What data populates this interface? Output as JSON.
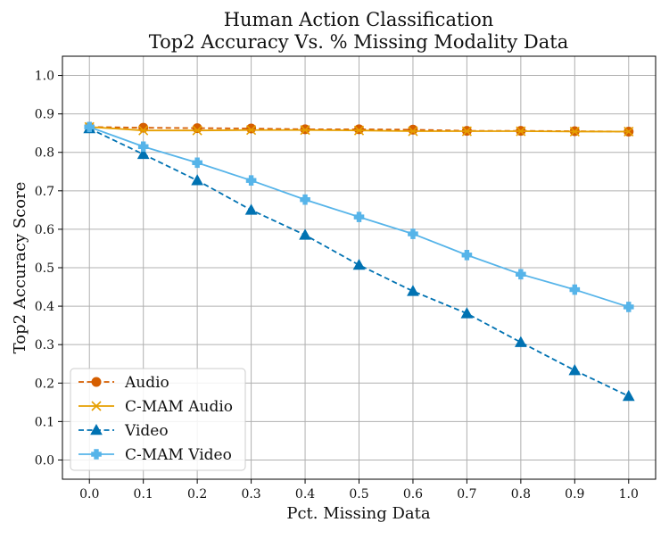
{
  "chart_data": {
    "type": "line",
    "title": "Human Action Classification",
    "subtitle": "Top2 Accuracy Vs. % Missing Modality Data",
    "xlabel": "Pct. Missing Data",
    "ylabel": "Top2 Accuracy Score",
    "xlim": [
      -0.05,
      1.05
    ],
    "ylim": [
      -0.05,
      1.05
    ],
    "xticks": [
      "0.0",
      "0.1",
      "0.2",
      "0.3",
      "0.4",
      "0.5",
      "0.6",
      "0.7",
      "0.8",
      "0.9",
      "1.0"
    ],
    "yticks": [
      "0.0",
      "0.1",
      "0.2",
      "0.3",
      "0.4",
      "0.5",
      "0.6",
      "0.7",
      "0.8",
      "0.9",
      "1.0"
    ],
    "grid": true,
    "legend_position": "lower-left",
    "x": [
      0.0,
      0.1,
      0.2,
      0.3,
      0.4,
      0.5,
      0.6,
      0.7,
      0.8,
      0.9,
      1.0
    ],
    "series": [
      {
        "name": "Audio",
        "values": [
          0.866,
          0.864,
          0.863,
          0.862,
          0.86,
          0.86,
          0.859,
          0.856,
          0.856,
          0.855,
          0.854
        ],
        "color": "#D55E00",
        "line_style": "dashed",
        "marker": "circle"
      },
      {
        "name": "C-MAM Audio",
        "values": [
          0.866,
          0.857,
          0.857,
          0.858,
          0.858,
          0.857,
          0.855,
          0.855,
          0.855,
          0.854,
          0.854
        ],
        "color": "#E69F00",
        "line_style": "solid",
        "marker": "x"
      },
      {
        "name": "Video",
        "values": [
          0.862,
          0.795,
          0.727,
          0.65,
          0.585,
          0.507,
          0.439,
          0.381,
          0.306,
          0.233,
          0.166
        ],
        "color": "#0072B2",
        "line_style": "dashed",
        "marker": "triangle"
      },
      {
        "name": "C-MAM Video",
        "values": [
          0.866,
          0.815,
          0.773,
          0.727,
          0.677,
          0.632,
          0.588,
          0.533,
          0.483,
          0.443,
          0.398
        ],
        "color": "#56B4E9",
        "line_style": "solid",
        "marker": "plus-filled"
      }
    ]
  }
}
